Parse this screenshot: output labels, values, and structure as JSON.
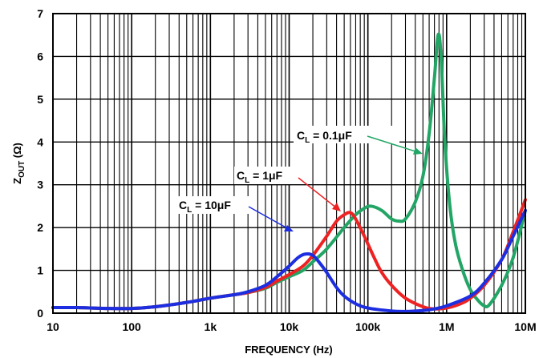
{
  "chart_data": {
    "type": "line",
    "xlabel": "FREQUENCY (Hz)",
    "ylabel_main": "Z",
    "ylabel_sub": "OUT",
    "ylabel_unit": " (Ω)",
    "xscale": "log",
    "xlim": [
      10,
      10000000
    ],
    "ylim": [
      0,
      7
    ],
    "grid": true,
    "x_tick_labels": [
      "10",
      "100",
      "1k",
      "10k",
      "100k",
      "1M",
      "10M"
    ],
    "y_tick_labels": [
      "0",
      "1",
      "2",
      "3",
      "4",
      "5",
      "6",
      "7"
    ],
    "colors": {
      "cl_01uf": "#22a565",
      "cl_1uf": "#ee2222",
      "cl_10uf": "#1d2ee0"
    },
    "series": [
      {
        "key": "cl_01uf",
        "annotation": {
          "main": "C",
          "sub": "L",
          "rest": " = 0.1μF"
        },
        "points": [
          [
            10,
            0.13
          ],
          [
            20,
            0.13
          ],
          [
            50,
            0.11
          ],
          [
            100,
            0.11
          ],
          [
            200,
            0.15
          ],
          [
            500,
            0.25
          ],
          [
            1000,
            0.35
          ],
          [
            2000,
            0.43
          ],
          [
            3000,
            0.48
          ],
          [
            5000,
            0.58
          ],
          [
            7000,
            0.72
          ],
          [
            10000,
            0.85
          ],
          [
            15000,
            1.0
          ],
          [
            20000,
            1.2
          ],
          [
            30000,
            1.5
          ],
          [
            50000,
            2.0
          ],
          [
            70000,
            2.3
          ],
          [
            90000,
            2.45
          ],
          [
            110000,
            2.5
          ],
          [
            150000,
            2.4
          ],
          [
            200000,
            2.2
          ],
          [
            250000,
            2.15
          ],
          [
            300000,
            2.2
          ],
          [
            400000,
            2.6
          ],
          [
            500000,
            3.2
          ],
          [
            600000,
            4.2
          ],
          [
            700000,
            5.5
          ],
          [
            780000,
            6.5
          ],
          [
            850000,
            6.0
          ],
          [
            950000,
            4.0
          ],
          [
            1100000,
            2.5
          ],
          [
            1300000,
            1.6
          ],
          [
            1600000,
            1.0
          ],
          [
            2000000,
            0.55
          ],
          [
            2500000,
            0.3
          ],
          [
            3000000,
            0.17
          ],
          [
            3500000,
            0.2
          ],
          [
            5000000,
            0.65
          ],
          [
            7000000,
            1.3
          ],
          [
            10000000,
            2.4
          ]
        ]
      },
      {
        "key": "cl_1uf",
        "annotation": {
          "main": "C",
          "sub": "L",
          "rest": " = 1μF"
        },
        "points": [
          [
            10,
            0.13
          ],
          [
            20,
            0.13
          ],
          [
            50,
            0.11
          ],
          [
            100,
            0.11
          ],
          [
            200,
            0.15
          ],
          [
            500,
            0.25
          ],
          [
            1000,
            0.35
          ],
          [
            2000,
            0.43
          ],
          [
            3000,
            0.48
          ],
          [
            5000,
            0.6
          ],
          [
            7000,
            0.75
          ],
          [
            10000,
            0.9
          ],
          [
            15000,
            1.1
          ],
          [
            20000,
            1.35
          ],
          [
            30000,
            1.8
          ],
          [
            40000,
            2.15
          ],
          [
            50000,
            2.3
          ],
          [
            60000,
            2.35
          ],
          [
            70000,
            2.2
          ],
          [
            90000,
            1.8
          ],
          [
            120000,
            1.3
          ],
          [
            150000,
            0.95
          ],
          [
            200000,
            0.65
          ],
          [
            300000,
            0.35
          ],
          [
            500000,
            0.15
          ],
          [
            700000,
            0.1
          ],
          [
            1000000,
            0.12
          ],
          [
            1500000,
            0.22
          ],
          [
            2000000,
            0.35
          ],
          [
            3000000,
            0.65
          ],
          [
            5000000,
            1.25
          ],
          [
            7000000,
            1.9
          ],
          [
            10000000,
            2.65
          ]
        ]
      },
      {
        "key": "cl_10uf",
        "annotation": {
          "main": "C",
          "sub": "L",
          "rest": " = 10μF"
        },
        "points": [
          [
            10,
            0.13
          ],
          [
            20,
            0.13
          ],
          [
            50,
            0.11
          ],
          [
            100,
            0.11
          ],
          [
            200,
            0.15
          ],
          [
            500,
            0.25
          ],
          [
            1000,
            0.35
          ],
          [
            2000,
            0.43
          ],
          [
            3000,
            0.5
          ],
          [
            5000,
            0.65
          ],
          [
            7000,
            0.85
          ],
          [
            10000,
            1.1
          ],
          [
            13000,
            1.3
          ],
          [
            16000,
            1.38
          ],
          [
            20000,
            1.35
          ],
          [
            25000,
            1.15
          ],
          [
            30000,
            0.95
          ],
          [
            40000,
            0.6
          ],
          [
            50000,
            0.4
          ],
          [
            70000,
            0.22
          ],
          [
            100000,
            0.12
          ],
          [
            200000,
            0.05
          ],
          [
            300000,
            0.04
          ],
          [
            500000,
            0.06
          ],
          [
            700000,
            0.1
          ],
          [
            1000000,
            0.17
          ],
          [
            2000000,
            0.4
          ],
          [
            3000000,
            0.7
          ],
          [
            5000000,
            1.25
          ],
          [
            7000000,
            1.8
          ],
          [
            10000000,
            2.4
          ]
        ]
      }
    ]
  }
}
